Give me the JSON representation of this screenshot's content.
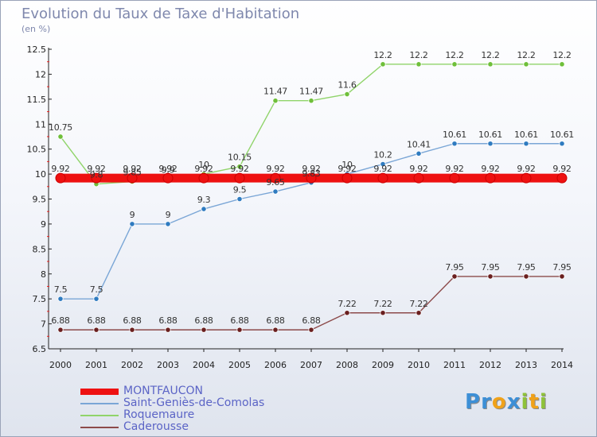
{
  "title": "Evolution du Taux de Taxe d'Habitation",
  "subtitle": "(en %)",
  "brand": {
    "letters": [
      {
        "ch": "P",
        "color": "#3d8fd6"
      },
      {
        "ch": "r",
        "color": "#3d8fd6"
      },
      {
        "ch": "o",
        "color": "#f0a21a"
      },
      {
        "ch": "x",
        "color": "#3d8fd6"
      },
      {
        "ch": "i",
        "color": "#8fc23a"
      },
      {
        "ch": "t",
        "color": "#f0a21a"
      },
      {
        "ch": "i",
        "color": "#8fc23a"
      }
    ]
  },
  "chart_data": {
    "type": "line",
    "x": [
      "2000",
      "2001",
      "2002",
      "2003",
      "2004",
      "2005",
      "2006",
      "2007",
      "2008",
      "2009",
      "2010",
      "2011",
      "2012",
      "2013",
      "2014"
    ],
    "ylim": [
      6.5,
      12.5
    ],
    "yticks": [
      "6.5",
      "7",
      "7.5",
      "8",
      "8.5",
      "9",
      "9.5",
      "10",
      "10.5",
      "11",
      "11.5",
      "12",
      "12.5"
    ],
    "grid": false,
    "legend_position": "bottom-left",
    "series": [
      {
        "name": "MONTFAUCON",
        "color": "#ee1111",
        "marker_color": "#ee1111",
        "values": [
          9.92,
          9.92,
          9.92,
          9.92,
          9.92,
          9.92,
          9.92,
          9.92,
          9.92,
          9.92,
          9.92,
          9.92,
          9.92,
          9.92,
          9.92
        ],
        "labels": [
          "9.92",
          "9.92",
          "9.92",
          "9.92",
          "9.92",
          "9.92",
          "9.92",
          "9.92",
          "9.92",
          "9.92",
          "9.92",
          "9.92",
          "9.92",
          "9.92",
          "9.92"
        ]
      },
      {
        "name": "Saint-Geniès-de-Comolas",
        "color": "#7aa6d6",
        "marker_color": "#2f7bc0",
        "values": [
          7.5,
          7.5,
          9,
          9,
          9.3,
          9.5,
          9.65,
          9.83,
          10,
          10.2,
          10.41,
          10.61,
          10.61,
          10.61,
          10.61
        ],
        "labels": [
          "7.5",
          "7.5",
          "9",
          "9",
          "9.3",
          "9.5",
          "9.65",
          "9.83",
          "10",
          "10.2",
          "10.41",
          "10.61",
          "10.61",
          "10.61",
          "10.61"
        ]
      },
      {
        "name": "Roquemaure",
        "color": "#90d46a",
        "marker_color": "#6fbf3a",
        "values": [
          10.75,
          9.8,
          9.85,
          9.9,
          10,
          10.15,
          11.47,
          11.47,
          11.6,
          12.2,
          12.2,
          12.2,
          12.2,
          12.2,
          12.2
        ],
        "labels": [
          "10.75",
          "9.8",
          "9.85",
          "9.9",
          "10",
          "10.15",
          "11.47",
          "11.47",
          "11.6",
          "12.2",
          "12.2",
          "12.2",
          "12.2",
          "12.2",
          "12.2"
        ]
      },
      {
        "name": "Caderousse",
        "color": "#8c4a4a",
        "marker_color": "#6a1f1f",
        "values": [
          6.88,
          6.88,
          6.88,
          6.88,
          6.88,
          6.88,
          6.88,
          6.88,
          7.22,
          7.22,
          7.22,
          7.95,
          7.95,
          7.95,
          7.95
        ],
        "labels": [
          "6.88",
          "6.88",
          "6.88",
          "6.88",
          "6.88",
          "6.88",
          "6.88",
          "6.88",
          "7.22",
          "7.22",
          "7.22",
          "7.95",
          "7.95",
          "7.95",
          "7.95"
        ]
      }
    ]
  }
}
